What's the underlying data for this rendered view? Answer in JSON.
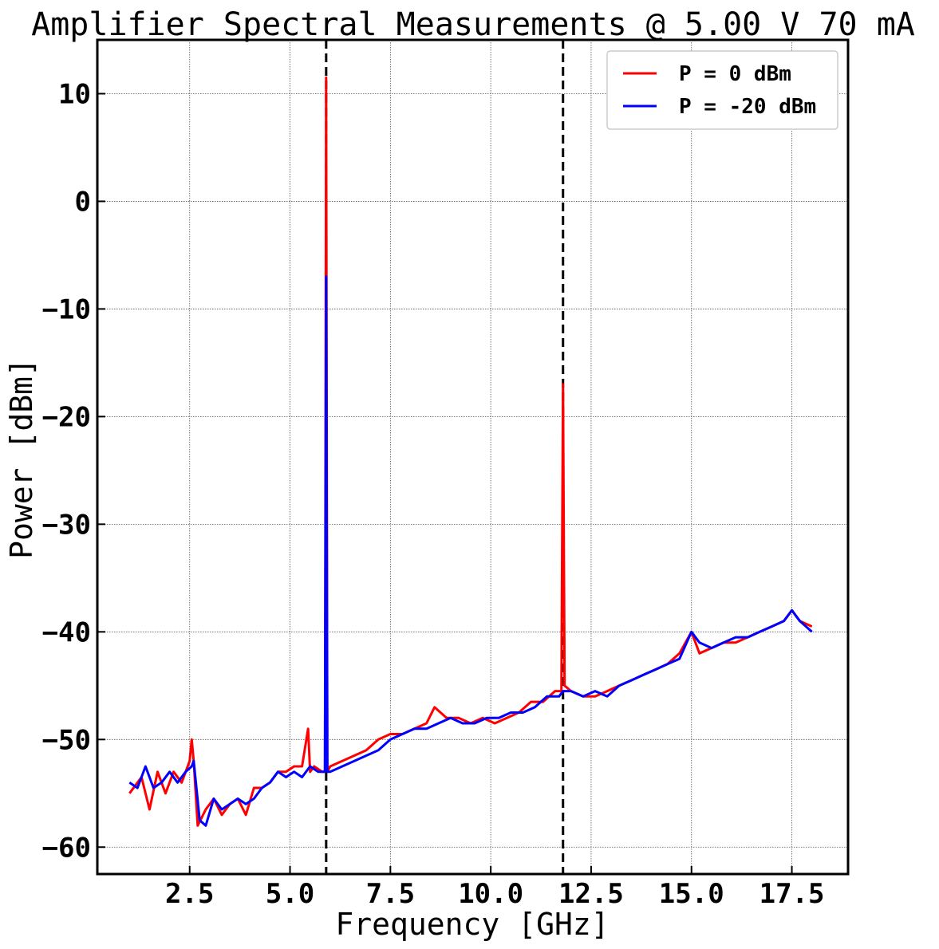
{
  "chart_data": {
    "type": "line",
    "title": "Amplifier Spectral Measurements @ 5.00 V 70 mA",
    "xlabel": "Frequency [GHz]",
    "ylabel": "Power [dBm]",
    "xlim": [
      0.2,
      18.9
    ],
    "ylim": [
      -62.5,
      15
    ],
    "xticks": [
      2.5,
      5.0,
      7.5,
      10.0,
      12.5,
      15.0,
      17.5
    ],
    "xtick_labels": [
      "2.5",
      "5.0",
      "7.5",
      "10.0",
      "12.5",
      "15.0",
      "17.5"
    ],
    "yticks": [
      -60,
      -50,
      -40,
      -30,
      -20,
      -10,
      0,
      10
    ],
    "ytick_labels": [
      "−60",
      "−50",
      "−40",
      "−30",
      "−20",
      "−10",
      "0",
      "10"
    ],
    "grid": true,
    "legend": "top-right",
    "vertical_lines": [
      5.9,
      11.8
    ],
    "series": [
      {
        "name": "P = 0 dBm",
        "color": "#ff0000",
        "x": [
          1.0,
          1.3,
          1.5,
          1.7,
          1.9,
          2.1,
          2.3,
          2.5,
          2.55,
          2.6,
          2.7,
          2.9,
          3.1,
          3.3,
          3.5,
          3.7,
          3.9,
          4.1,
          4.3,
          4.5,
          4.7,
          4.9,
          5.1,
          5.3,
          5.45,
          5.5,
          5.6,
          5.8,
          5.87,
          5.9,
          5.93,
          6.0,
          6.3,
          6.6,
          6.9,
          7.2,
          7.5,
          7.8,
          8.1,
          8.4,
          8.6,
          8.9,
          9.2,
          9.5,
          9.8,
          10.1,
          10.4,
          10.7,
          11.0,
          11.3,
          11.6,
          11.76,
          11.8,
          11.84,
          12.0,
          12.3,
          12.6,
          12.9,
          13.2,
          13.5,
          13.8,
          14.1,
          14.4,
          14.7,
          15.0,
          15.2,
          15.5,
          15.8,
          16.1,
          16.4,
          16.7,
          17.0,
          17.3,
          17.5,
          17.7,
          18.0
        ],
        "y": [
          -55,
          -53.5,
          -56.5,
          -53,
          -55,
          -53,
          -54,
          -52,
          -50,
          -52,
          -58,
          -56.5,
          -55.5,
          -57,
          -56,
          -55.5,
          -57,
          -54.5,
          -54.5,
          -54,
          -53,
          -53,
          -52.5,
          -52.5,
          -49,
          -53,
          -52.5,
          -53,
          -53,
          11.5,
          -53,
          -52.5,
          -52,
          -51.5,
          -51,
          -50,
          -49.5,
          -49.5,
          -49,
          -48.5,
          -47,
          -48,
          -48,
          -48.5,
          -48,
          -48.5,
          -48,
          -47.5,
          -46.5,
          -46.5,
          -45.5,
          -45.5,
          -17,
          -45,
          -45.5,
          -46,
          -46,
          -45.5,
          -45,
          -44.5,
          -44,
          -43.5,
          -43,
          -42,
          -40,
          -42,
          -41.5,
          -41,
          -41,
          -40.5,
          -40,
          -39.5,
          -39,
          -38,
          -39,
          -39.5
        ]
      },
      {
        "name": "P = -20 dBm",
        "color": "#0000ff",
        "x": [
          1.0,
          1.2,
          1.4,
          1.6,
          1.8,
          2.0,
          2.2,
          2.4,
          2.55,
          2.6,
          2.75,
          2.9,
          3.1,
          3.3,
          3.5,
          3.7,
          3.9,
          4.1,
          4.3,
          4.5,
          4.7,
          4.9,
          5.1,
          5.3,
          5.5,
          5.7,
          5.87,
          5.9,
          5.93,
          6.0,
          6.3,
          6.6,
          6.9,
          7.2,
          7.5,
          7.8,
          8.1,
          8.4,
          8.7,
          9.0,
          9.3,
          9.6,
          9.9,
          10.2,
          10.5,
          10.8,
          11.1,
          11.4,
          11.7,
          11.8,
          12.0,
          12.3,
          12.6,
          12.9,
          13.2,
          13.5,
          13.8,
          14.1,
          14.4,
          14.7,
          15.0,
          15.2,
          15.5,
          15.8,
          16.1,
          16.4,
          16.7,
          17.0,
          17.3,
          17.5,
          17.7,
          18.0
        ],
        "y": [
          -54,
          -54.5,
          -52.5,
          -54.5,
          -54,
          -53,
          -54,
          -53,
          -52.5,
          -52,
          -57.5,
          -58,
          -55.5,
          -56.5,
          -56,
          -55.5,
          -56,
          -55.5,
          -54.5,
          -54,
          -53,
          -53.5,
          -53,
          -53.5,
          -52.5,
          -53,
          -53,
          -7,
          -53,
          -53,
          -52.5,
          -52,
          -51.5,
          -51,
          -50,
          -49.5,
          -49,
          -49,
          -48.5,
          -48,
          -48.5,
          -48.5,
          -48,
          -48,
          -47.5,
          -47.5,
          -47,
          -46,
          -46,
          -45.5,
          -45.5,
          -46,
          -45.5,
          -46,
          -45,
          -44.5,
          -44,
          -43.5,
          -43,
          -42.5,
          -40,
          -41,
          -41.5,
          -41,
          -40.5,
          -40.5,
          -40,
          -39.5,
          -39,
          -38,
          -39,
          -40
        ]
      }
    ]
  }
}
